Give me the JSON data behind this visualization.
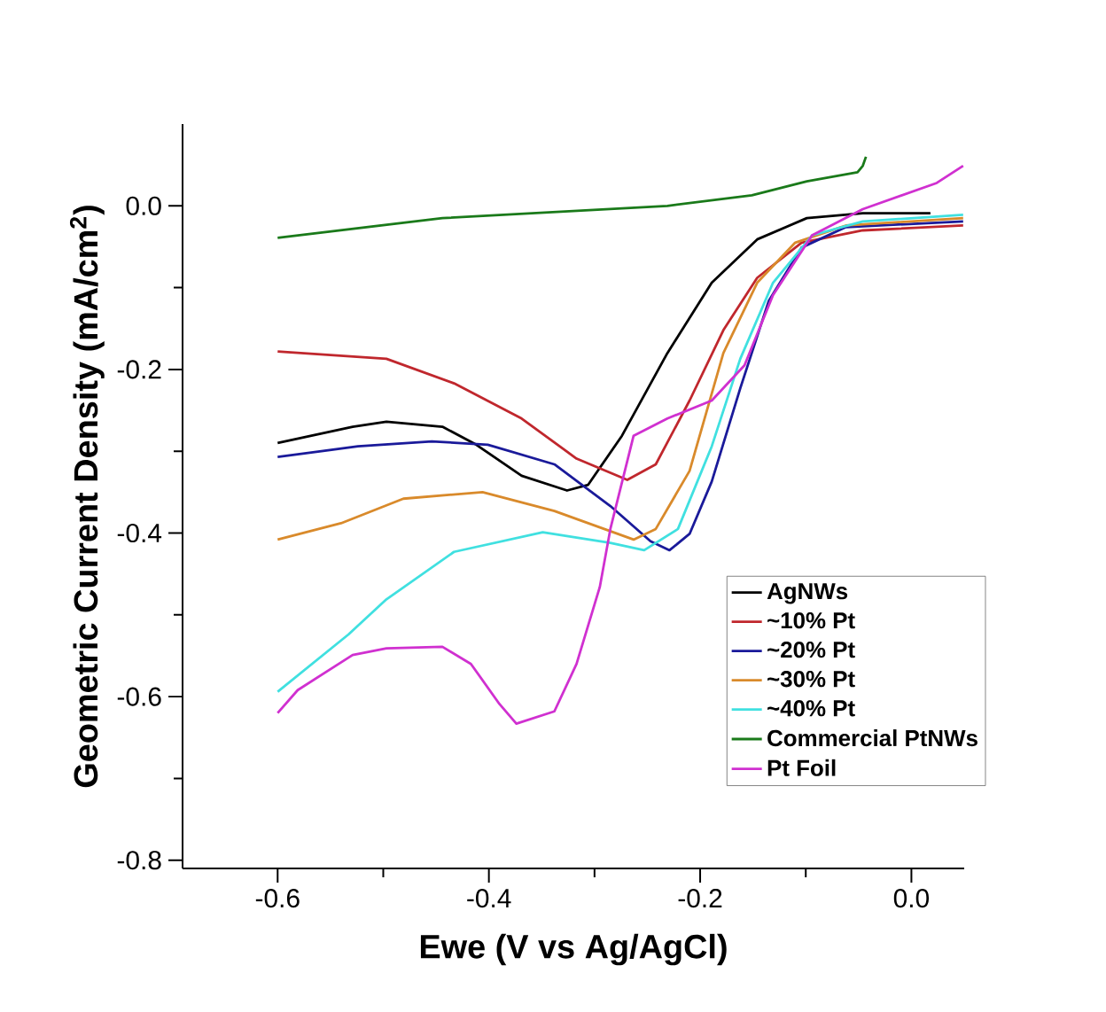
{
  "chart_data": {
    "type": "line",
    "xlabel": "Ewe (V vs Ag/AgCl)",
    "ylabel": "Geometric Current Density (mA/cm$^{2}$)",
    "xlim": [
      -0.69,
      0.05
    ],
    "ylim": [
      -0.81,
      0.1
    ],
    "xticks": [
      {
        "value": -0.6,
        "label": "-0.6"
      },
      {
        "value": -0.4,
        "label": "-0.4"
      },
      {
        "value": -0.2,
        "label": "-0.2"
      },
      {
        "value": 0,
        "label": "0.0"
      }
    ],
    "yticks": [
      {
        "value": -0.8,
        "label": "-0.8"
      },
      {
        "value": -0.6,
        "label": "-0.6"
      },
      {
        "value": -0.4,
        "label": "-0.4"
      },
      {
        "value": -0.2,
        "label": "-0.2"
      },
      {
        "value": 0,
        "label": "0.0"
      }
    ],
    "legend": "right",
    "grid": false,
    "line_style": "solid",
    "series": [
      {
        "name": "AgNWs",
        "color": "#000000",
        "x": [
          -0.6,
          -0.529,
          -0.497,
          -0.444,
          -0.412,
          -0.369,
          -0.326,
          -0.306,
          -0.274,
          -0.231,
          -0.189,
          -0.146,
          -0.099,
          -0.046,
          0.018
        ],
        "values": [
          -0.29,
          -0.27,
          -0.264,
          -0.27,
          -0.292,
          -0.33,
          -0.348,
          -0.341,
          -0.281,
          -0.18,
          -0.094,
          -0.041,
          -0.015,
          -0.009,
          -0.009
        ]
      },
      {
        "name": "~10% Pt",
        "color": "#c0272d",
        "x": [
          -0.6,
          -0.497,
          -0.433,
          -0.369,
          -0.317,
          -0.269,
          -0.242,
          -0.21,
          -0.178,
          -0.146,
          -0.104,
          -0.046,
          0.049
        ],
        "values": [
          -0.178,
          -0.187,
          -0.217,
          -0.26,
          -0.309,
          -0.335,
          -0.316,
          -0.238,
          -0.152,
          -0.088,
          -0.045,
          -0.03,
          -0.024
        ]
      },
      {
        "name": "~20% Pt",
        "color": "#1a1a9a",
        "x": [
          -0.6,
          -0.524,
          -0.454,
          -0.401,
          -0.338,
          -0.285,
          -0.247,
          -0.229,
          -0.21,
          -0.189,
          -0.162,
          -0.135,
          -0.104,
          -0.062,
          0.049
        ],
        "values": [
          -0.307,
          -0.294,
          -0.288,
          -0.292,
          -0.316,
          -0.367,
          -0.41,
          -0.421,
          -0.401,
          -0.337,
          -0.223,
          -0.116,
          -0.051,
          -0.026,
          -0.019
        ]
      },
      {
        "name": "~30% Pt",
        "color": "#d98a2b",
        "x": [
          -0.6,
          -0.54,
          -0.481,
          -0.406,
          -0.338,
          -0.263,
          -0.242,
          -0.21,
          -0.178,
          -0.146,
          -0.11,
          -0.062,
          0.049
        ],
        "values": [
          -0.408,
          -0.388,
          -0.358,
          -0.35,
          -0.373,
          -0.408,
          -0.395,
          -0.324,
          -0.18,
          -0.094,
          -0.045,
          -0.024,
          -0.015
        ]
      },
      {
        "name": "~40% Pt",
        "color": "#40e0e0",
        "x": [
          -0.6,
          -0.533,
          -0.497,
          -0.433,
          -0.349,
          -0.285,
          -0.253,
          -0.221,
          -0.189,
          -0.162,
          -0.131,
          -0.094,
          -0.046,
          0.049
        ],
        "values": [
          -0.594,
          -0.524,
          -0.481,
          -0.423,
          -0.399,
          -0.412,
          -0.421,
          -0.395,
          -0.294,
          -0.187,
          -0.094,
          -0.036,
          -0.019,
          -0.011
        ]
      },
      {
        "name": "Commercial PtNWs",
        "color": "#1a7a1a",
        "x": [
          -0.6,
          -0.444,
          -0.231,
          -0.151,
          -0.099,
          -0.051,
          -0.046,
          -0.043
        ],
        "values": [
          -0.039,
          -0.015,
          0.0,
          0.013,
          0.03,
          0.041,
          0.049,
          0.06
        ]
      },
      {
        "name": "Pt Foil",
        "color": "#d030d0",
        "x": [
          -0.6,
          -0.581,
          -0.529,
          -0.497,
          -0.444,
          -0.417,
          -0.39,
          -0.374,
          -0.338,
          -0.317,
          -0.295,
          -0.285,
          -0.263,
          -0.231,
          -0.189,
          -0.158,
          -0.131,
          -0.094,
          -0.046,
          0.024,
          0.049
        ],
        "values": [
          -0.62,
          -0.592,
          -0.549,
          -0.541,
          -0.539,
          -0.56,
          -0.609,
          -0.633,
          -0.618,
          -0.56,
          -0.466,
          -0.395,
          -0.281,
          -0.26,
          -0.238,
          -0.195,
          -0.109,
          -0.036,
          -0.004,
          0.028,
          0.049
        ]
      }
    ]
  }
}
